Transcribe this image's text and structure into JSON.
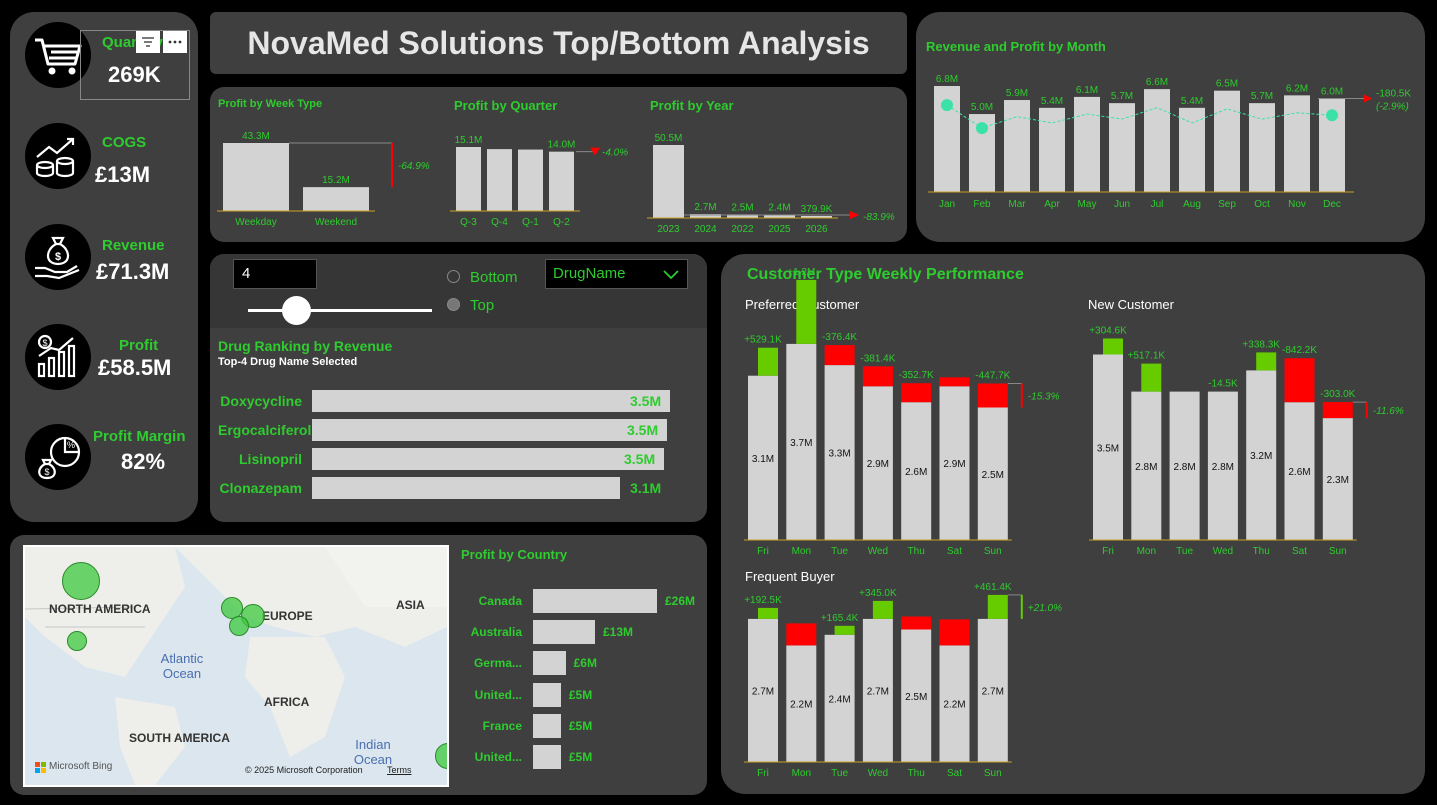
{
  "title": "NovaMed Solutions Top/Bottom Analysis",
  "kpis": [
    {
      "label": "Quantity",
      "value": "269K",
      "icon": "cart-icon"
    },
    {
      "label": "COGS",
      "value": "£13M",
      "icon": "coins-chart-icon"
    },
    {
      "label": "Revenue",
      "value": "£71.3M",
      "icon": "money-bag-hand-icon"
    },
    {
      "label": "Profit",
      "value": "£58.5M",
      "icon": "growth-chart-icon"
    },
    {
      "label": "Profit Margin",
      "value": "82%",
      "icon": "percent-money-icon"
    }
  ],
  "visual_header": {
    "filter_icon": "filter-icon",
    "more_icon": "more-options-icon"
  },
  "week_type": {
    "title": "Profit by Week Type",
    "categories": [
      "Weekday",
      "Weekend"
    ],
    "values": [
      43.3,
      15.2
    ],
    "labels": [
      "43.3M",
      "15.2M"
    ],
    "variance": "-64.9%"
  },
  "quarter": {
    "title": "Profit by Quarter",
    "categories": [
      "Q-3",
      "Q-4",
      "Q-1",
      "Q-2"
    ],
    "values": [
      15.1,
      14.6,
      14.5,
      14.0
    ],
    "labels": [
      "15.1M",
      "",
      "",
      "14.0M"
    ],
    "variance": "-4.0%"
  },
  "year": {
    "title": "Profit by Year",
    "categories": [
      "2023",
      "2024",
      "2022",
      "2025",
      "2026"
    ],
    "values": [
      50.5,
      2.7,
      2.5,
      2.4,
      0.38
    ],
    "labels": [
      "50.5M",
      "2.7M",
      "2.5M",
      "2.4M",
      "379.9K"
    ],
    "variance": "-83.9%"
  },
  "monthly": {
    "title": "Revenue and Profit by Month",
    "categories": [
      "Jan",
      "Feb",
      "Mar",
      "Apr",
      "May",
      "Jun",
      "Jul",
      "Aug",
      "Sep",
      "Oct",
      "Nov",
      "Dec"
    ],
    "values": [
      6.8,
      5.0,
      5.9,
      5.4,
      6.1,
      5.7,
      6.6,
      5.4,
      6.5,
      5.7,
      6.2,
      6.0
    ],
    "labels": [
      "6.8M",
      "5.0M",
      "5.9M",
      "5.4M",
      "6.1M",
      "5.7M",
      "6.6M",
      "5.4M",
      "6.5M",
      "5.7M",
      "6.2M",
      "6.0M"
    ],
    "variance": "-180.5K",
    "variance_pct": "(-2.9%)"
  },
  "slicer": {
    "value": "4",
    "options": [
      "Bottom",
      "Top"
    ],
    "selected": "Top",
    "dropdown": "DrugName"
  },
  "ranking": {
    "title": "Drug Ranking by Revenue",
    "subtitle": "Top-4 Drug Name Selected",
    "items": [
      {
        "name": "Doxycycline",
        "value": 3.5,
        "label": "3.5M"
      },
      {
        "name": "Ergocalciferol",
        "value": 3.5,
        "label": "3.5M"
      },
      {
        "name": "Lisinopril",
        "value": 3.5,
        "label": "3.5M"
      },
      {
        "name": "Clonazepam",
        "value": 3.1,
        "label": "3.1M"
      }
    ]
  },
  "map": {
    "labels": [
      "NORTH AMERICA",
      "EUROPE",
      "ASIA",
      "AFRICA",
      "SOUTH AMERICA"
    ],
    "oceans": [
      "Atlantic Ocean",
      "Indian Ocean"
    ],
    "brand": "Microsoft Bing",
    "copyright": "© 2025 Microsoft Corporation",
    "terms": "Terms"
  },
  "country": {
    "title": "Profit by Country",
    "items": [
      {
        "name": "Canada",
        "value": 26,
        "label": "£26M"
      },
      {
        "name": "Australia",
        "value": 13,
        "label": "£13M"
      },
      {
        "name": "Germa...",
        "value": 6,
        "label": "£6M"
      },
      {
        "name": "United...",
        "value": 5,
        "label": "£5M"
      },
      {
        "name": "France",
        "value": 5,
        "label": "£5M"
      },
      {
        "name": "United...",
        "value": 5,
        "label": "£5M"
      }
    ]
  },
  "customer": {
    "title": "Customer Type Weekly Performance",
    "days": [
      "Fri",
      "Mon",
      "Tue",
      "Wed",
      "Thu",
      "Sat",
      "Sun"
    ],
    "groups": [
      {
        "name": "Preferred Customer",
        "values": [
          3.1,
          3.7,
          3.3,
          2.9,
          2.6,
          2.9,
          2.5
        ],
        "labels": [
          "3.1M",
          "3.7M",
          "3.3M",
          "2.9M",
          "2.6M",
          "2.9M",
          "2.5M"
        ],
        "deltas": [
          "+529.1K",
          "+1.2M",
          "-376.4K",
          "-381.4K",
          "-352.7K",
          "",
          "-447.7K"
        ],
        "variance": "-15.3%"
      },
      {
        "name": "New Customer",
        "values": [
          3.5,
          2.8,
          2.8,
          2.8,
          3.2,
          2.6,
          2.3
        ],
        "labels": [
          "3.5M",
          "2.8M",
          "2.8M",
          "2.8M",
          "3.2M",
          "2.6M",
          "2.3M"
        ],
        "deltas": [
          "+304.6K",
          "+517.1K",
          "",
          "-14.5K",
          "+338.3K",
          "-842.2K",
          "-303.0K"
        ],
        "variance": "-11.6%"
      },
      {
        "name": "Frequent Buyer",
        "values": [
          2.7,
          2.2,
          2.4,
          2.7,
          2.5,
          2.2,
          2.7
        ],
        "labels": [
          "2.7M",
          "2.2M",
          "2.4M",
          "2.7M",
          "2.5M",
          "2.2M",
          "2.7M"
        ],
        "deltas": [
          "+192.5K",
          "",
          "+165.4K",
          "+345.0K",
          "",
          "",
          "+461.4K"
        ],
        "variance": "+21.0%"
      }
    ]
  },
  "colors": {
    "accent": "#2ecc2e",
    "bar": "#d3d3d3",
    "negative": "#ff0000",
    "positive": "#66cc00",
    "panel": "#3f3f3f"
  }
}
